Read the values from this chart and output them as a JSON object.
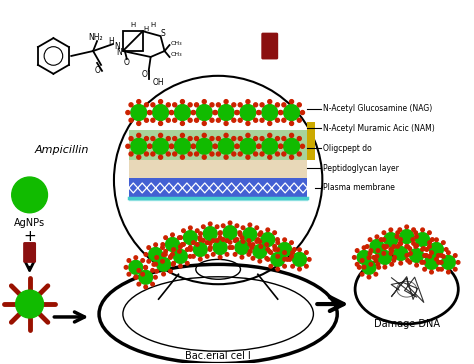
{
  "background_color": "#ffffff",
  "ampicillin_label": "Ampicillin",
  "agnps_label": "AgNPs",
  "bacterial_cell_label": "Bac.erial cel l",
  "damage_label": "Damage DNA",
  "layer_labels": [
    "N-Acetyl Glucosamine (NAG)",
    "N-Acetyl Muramic Acic (NAM)",
    "Oligcpept do",
    "Peptidoglycan layer",
    "Plasma membrane"
  ],
  "green_color": "#11bb00",
  "dark_red_color": "#991100",
  "red_dot_color": "#cc2200",
  "blue_color": "#2244cc",
  "yellow_color": "#ccaa00",
  "light_green_color": "#99cc88",
  "wheat_color": "#e8d8b8",
  "cyan_color": "#44cccc"
}
